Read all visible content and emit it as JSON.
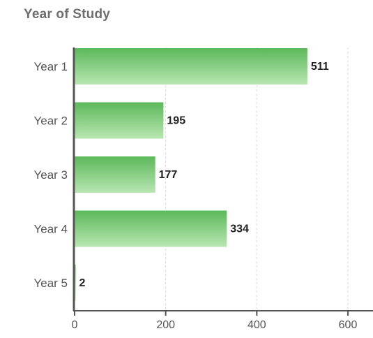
{
  "chart_data": {
    "type": "bar",
    "orientation": "horizontal",
    "title": "Year of Study",
    "xlabel": "",
    "ylabel": "",
    "categories": [
      "Year 1",
      "Year 2",
      "Year 3",
      "Year 4",
      "Year 5"
    ],
    "values": [
      511,
      195,
      177,
      334,
      2
    ],
    "data_labels": [
      "511",
      "195",
      "177",
      "334",
      "2"
    ],
    "xlim": [
      0,
      650
    ],
    "xticks": [
      0,
      200,
      400,
      600
    ],
    "xtick_labels": [
      "0",
      "200",
      "400",
      "600"
    ],
    "grid": "vertical dashed",
    "legend": "none",
    "colors": {
      "bar_top": "#5cb85a",
      "bar_bottom": "#b8e6b2",
      "axis": "#555555",
      "grid": "#d9d9d9",
      "label_text": "#555555",
      "value_text": "#222222"
    }
  }
}
